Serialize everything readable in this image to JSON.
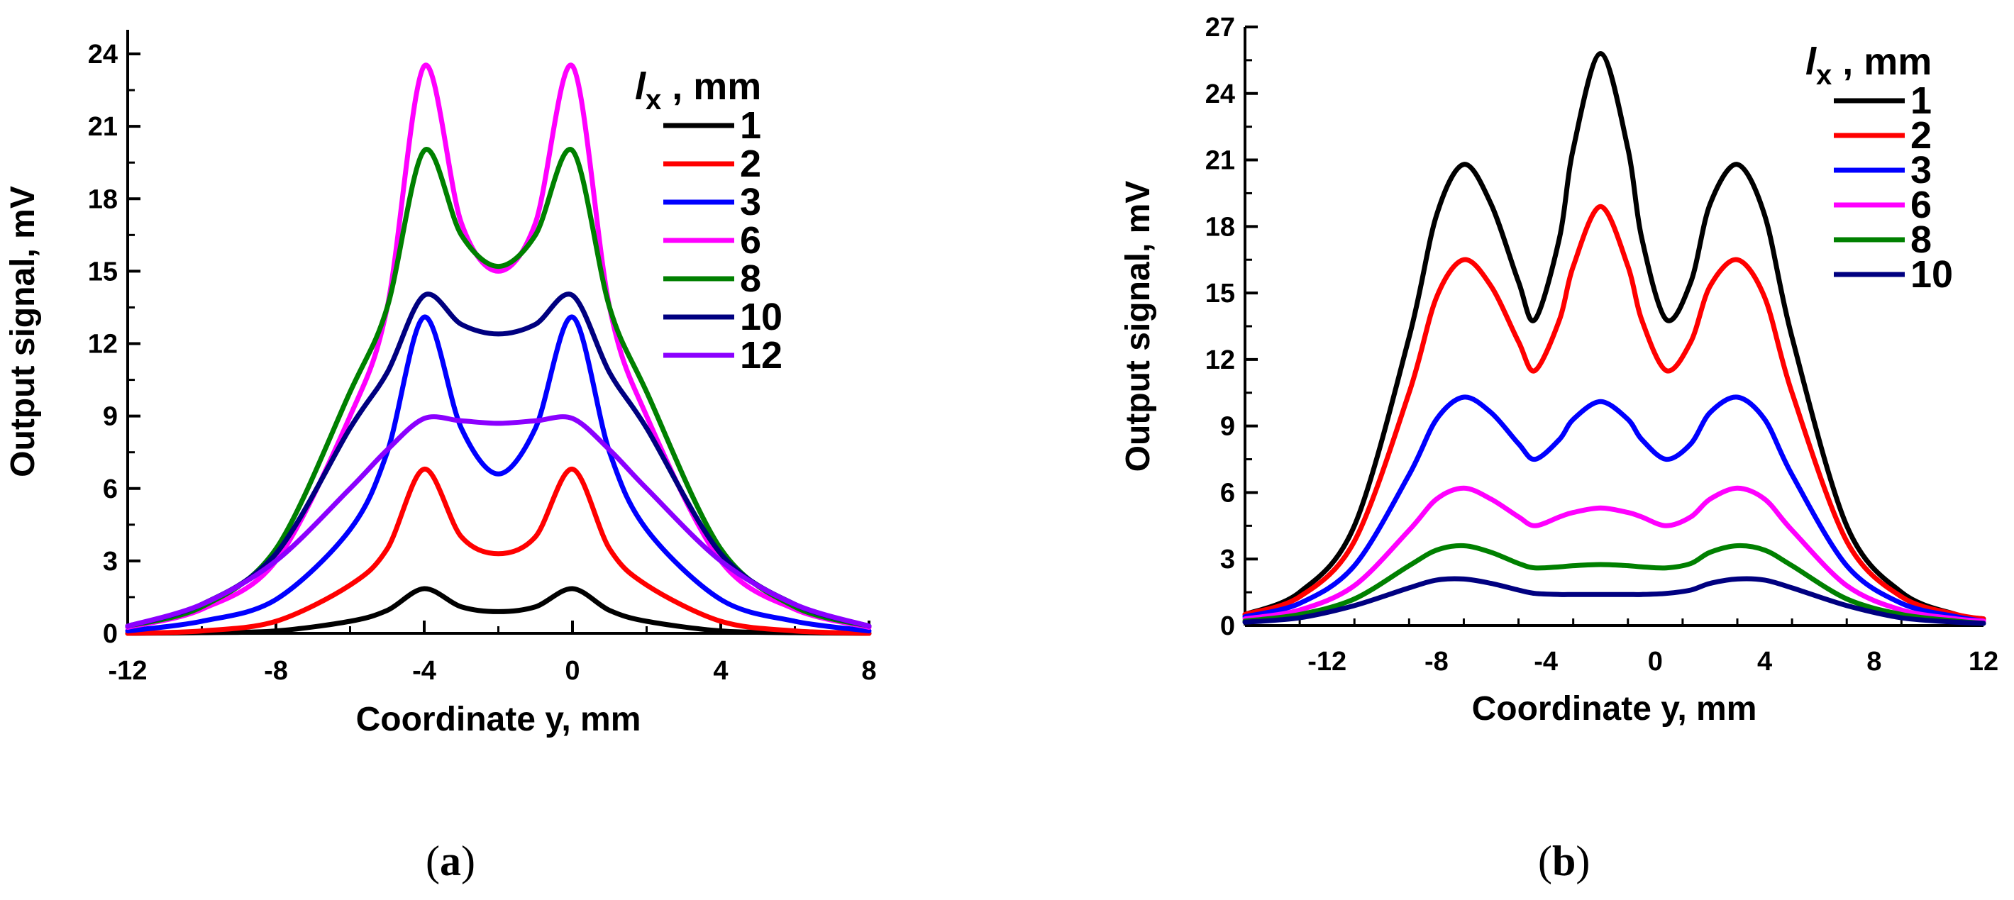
{
  "chart_data": [
    {
      "type": "line",
      "panel_label": "a",
      "xlabel": "Coordinate y, mm",
      "ylabel": "Output signal, mV",
      "xlim": [
        -12,
        8
      ],
      "ylim": [
        0,
        25
      ],
      "xticks": [
        -12,
        -8,
        -4,
        0,
        4,
        8
      ],
      "yticks": [
        0,
        3,
        6,
        9,
        12,
        15,
        18,
        21,
        24
      ],
      "legend_title_italic": "l",
      "legend_title_sub": "x",
      "legend_title_rest": " , mm",
      "legend_position": "top-right",
      "series": [
        {
          "name": "1",
          "color": "#000000",
          "x": [
            -12,
            -10,
            -8,
            -6,
            -5,
            -4,
            -3,
            -2,
            -1,
            0,
            1,
            2,
            4,
            6,
            8
          ],
          "values": [
            0,
            0.03,
            0.1,
            0.5,
            0.95,
            1.85,
            1.1,
            0.9,
            1.1,
            1.85,
            0.95,
            0.5,
            0.1,
            0.03,
            0
          ]
        },
        {
          "name": "2",
          "color": "#ff0000",
          "x": [
            -12,
            -10,
            -8,
            -6,
            -5,
            -4,
            -3,
            -2,
            -1,
            0,
            1,
            2,
            4,
            6,
            8
          ],
          "values": [
            0,
            0.1,
            0.5,
            2.0,
            3.5,
            6.8,
            4.0,
            3.3,
            4.0,
            6.8,
            3.5,
            2.0,
            0.5,
            0.1,
            0
          ]
        },
        {
          "name": "3",
          "color": "#0000ff",
          "x": [
            -12,
            -10,
            -8,
            -6,
            -5,
            -4,
            -3,
            -2,
            -1,
            0,
            1,
            2,
            4,
            6,
            8
          ],
          "values": [
            0.1,
            0.5,
            1.4,
            4.3,
            7.5,
            13.1,
            8.5,
            6.6,
            8.5,
            13.1,
            7.5,
            4.3,
            1.4,
            0.5,
            0.1
          ]
        },
        {
          "name": "6",
          "color": "#ff00ff",
          "x": [
            -12,
            -10,
            -8,
            -6,
            -5,
            -4,
            -3,
            -2,
            -1,
            0,
            1,
            2,
            4,
            6,
            8
          ],
          "values": [
            0.25,
            1.0,
            3.0,
            9.0,
            13.5,
            23.5,
            17.0,
            15.0,
            17.0,
            23.5,
            13.5,
            9.0,
            3.0,
            1.0,
            0.25
          ]
        },
        {
          "name": "8",
          "color": "#008000",
          "x": [
            -12,
            -10,
            -8,
            -6,
            -5,
            -4,
            -3,
            -2,
            -1,
            0,
            1,
            2,
            4,
            6,
            8
          ],
          "values": [
            0.3,
            1.1,
            3.5,
            10.0,
            13.5,
            20.0,
            16.5,
            15.2,
            16.5,
            20.0,
            13.5,
            10.0,
            3.5,
            1.1,
            0.3
          ]
        },
        {
          "name": "10",
          "color": "#000080",
          "x": [
            -12,
            -10,
            -8,
            -6,
            -5,
            -4,
            -3,
            -2,
            -1,
            0,
            1,
            2,
            4,
            6,
            8
          ],
          "values": [
            0.3,
            1.2,
            3.3,
            8.5,
            10.8,
            14.0,
            12.8,
            12.4,
            12.8,
            14.0,
            10.8,
            8.5,
            3.3,
            1.2,
            0.3
          ]
        },
        {
          "name": "12",
          "color": "#8b00ff",
          "x": [
            -12,
            -10,
            -8,
            -6,
            -5,
            -4,
            -3,
            -2,
            -1,
            0,
            1,
            2,
            4,
            6,
            8
          ],
          "values": [
            0.3,
            1.2,
            3.0,
            6.0,
            7.6,
            8.9,
            8.8,
            8.7,
            8.8,
            8.9,
            7.6,
            6.0,
            3.0,
            1.2,
            0.3
          ]
        }
      ]
    },
    {
      "type": "line",
      "panel_label": "b",
      "xlabel": "Coordinate y, mm",
      "ylabel": "Output signal, mV",
      "xlim": [
        -15,
        12
      ],
      "ylim": [
        0,
        27
      ],
      "xticks": [
        -12,
        -8,
        -4,
        0,
        4,
        8,
        12
      ],
      "yticks": [
        0,
        3,
        6,
        9,
        12,
        15,
        18,
        21,
        24,
        27
      ],
      "legend_title_italic": "l",
      "legend_title_sub": "x",
      "legend_title_rest": " , mm",
      "legend_position": "top-right",
      "series": [
        {
          "name": "1",
          "color": "#000000",
          "x": [
            -15,
            -13,
            -11,
            -9,
            -8,
            -7,
            -6,
            -5,
            -4.4,
            -3.5,
            -3,
            -2,
            -1,
            -0.5,
            0.4,
            1.3,
            2,
            3,
            4,
            5,
            7,
            9,
            11,
            12
          ],
          "values": [
            0.5,
            1.5,
            4.5,
            13.0,
            18.5,
            20.8,
            19.0,
            15.5,
            13.8,
            17.5,
            21.5,
            25.8,
            21.5,
            17.5,
            13.8,
            15.5,
            19.0,
            20.8,
            18.5,
            13.0,
            4.5,
            1.5,
            0.5,
            0.3
          ]
        },
        {
          "name": "2",
          "color": "#ff0000",
          "x": [
            -15,
            -13,
            -11,
            -9,
            -8,
            -7,
            -6,
            -5,
            -4.4,
            -3.5,
            -3,
            -2,
            -1,
            -0.5,
            0.4,
            1.3,
            2,
            3,
            4,
            5,
            7,
            9,
            11,
            12
          ],
          "values": [
            0.5,
            1.3,
            3.8,
            10.5,
            14.8,
            16.5,
            15.3,
            12.8,
            11.5,
            13.8,
            16.2,
            18.9,
            16.2,
            13.8,
            11.5,
            12.8,
            15.3,
            16.5,
            14.8,
            10.5,
            3.8,
            1.3,
            0.5,
            0.3
          ]
        },
        {
          "name": "3",
          "color": "#0000ff",
          "x": [
            -15,
            -13,
            -11,
            -9,
            -8,
            -7,
            -6,
            -5,
            -4.4,
            -3.5,
            -3,
            -2,
            -1,
            -0.5,
            0.4,
            1.3,
            2,
            3,
            4,
            5,
            7,
            9,
            11,
            12
          ],
          "values": [
            0.4,
            1.0,
            2.7,
            6.8,
            9.3,
            10.3,
            9.6,
            8.2,
            7.5,
            8.4,
            9.3,
            10.1,
            9.3,
            8.4,
            7.5,
            8.2,
            9.6,
            10.3,
            9.3,
            6.8,
            2.7,
            1.0,
            0.4,
            0.2
          ]
        },
        {
          "name": "6",
          "color": "#ff00ff",
          "x": [
            -15,
            -13,
            -11,
            -9,
            -8,
            -7,
            -6,
            -5,
            -4.4,
            -3.5,
            -3,
            -2,
            -1,
            -0.5,
            0.4,
            1.3,
            2,
            3,
            4,
            5,
            7,
            9,
            11,
            12
          ],
          "values": [
            0.3,
            0.7,
            1.8,
            4.3,
            5.7,
            6.2,
            5.7,
            4.9,
            4.5,
            4.9,
            5.1,
            5.3,
            5.1,
            4.9,
            4.5,
            4.9,
            5.7,
            6.2,
            5.7,
            4.3,
            1.8,
            0.7,
            0.3,
            0.2
          ]
        },
        {
          "name": "8",
          "color": "#008000",
          "x": [
            -15,
            -13,
            -11,
            -9,
            -8,
            -7,
            -6,
            -5,
            -4.4,
            -3.5,
            -3,
            -2,
            -1,
            -0.5,
            0.4,
            1.3,
            2,
            3,
            4,
            5,
            7,
            9,
            11,
            12
          ],
          "values": [
            0.2,
            0.5,
            1.2,
            2.7,
            3.4,
            3.6,
            3.3,
            2.8,
            2.6,
            2.65,
            2.7,
            2.75,
            2.7,
            2.65,
            2.6,
            2.8,
            3.3,
            3.6,
            3.4,
            2.7,
            1.2,
            0.5,
            0.2,
            0.1
          ]
        },
        {
          "name": "10",
          "color": "#000080",
          "x": [
            -15,
            -13,
            -11,
            -9,
            -8,
            -7,
            -6,
            -5,
            -4.4,
            -3.5,
            -3,
            -2,
            -1,
            -0.5,
            0.4,
            1.3,
            2,
            3,
            4,
            5,
            7,
            9,
            11,
            12
          ],
          "values": [
            0.15,
            0.35,
            0.9,
            1.7,
            2.05,
            2.1,
            1.9,
            1.6,
            1.45,
            1.4,
            1.4,
            1.4,
            1.4,
            1.4,
            1.45,
            1.6,
            1.9,
            2.1,
            2.05,
            1.7,
            0.9,
            0.35,
            0.15,
            0.1
          ]
        }
      ]
    }
  ]
}
